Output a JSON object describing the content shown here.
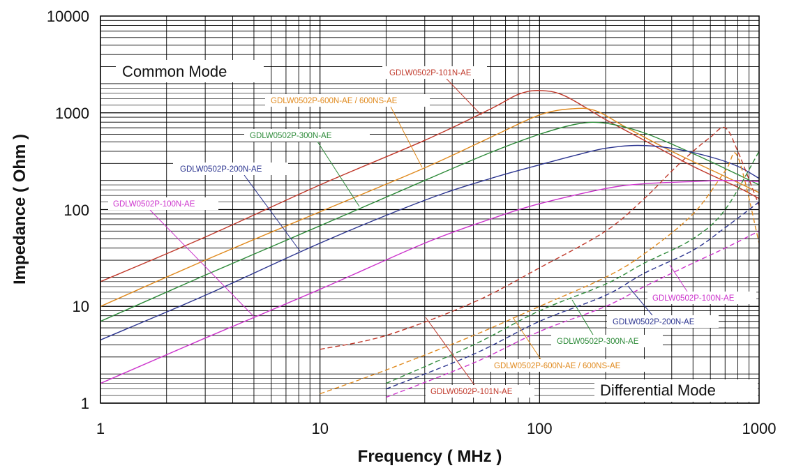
{
  "chart_data": {
    "type": "line",
    "xlabel": "Frequency ( MHz )",
    "ylabel": "Impedance ( Ohm )",
    "x_scale": "log",
    "y_scale": "log",
    "xlim": [
      1,
      1000
    ],
    "ylim": [
      1,
      10000
    ],
    "x_ticks": [
      "1",
      "10",
      "100",
      "1000"
    ],
    "y_ticks": [
      "1",
      "10",
      "100",
      "1000",
      "10000"
    ],
    "grid": true,
    "annotations": {
      "common_mode": "Common Mode",
      "differential_mode": "Differential Mode"
    },
    "colors": {
      "101N": "#c0392b",
      "600N": "#e08a1e",
      "300N": "#2e8b3a",
      "200N": "#2c3590",
      "100N": "#cc33cc"
    },
    "labels": {
      "cm_101": "GDLW0502P-101N-AE",
      "cm_600": "GDLW0502P-600N-AE / 600NS-AE",
      "cm_300": "GDLW0502P-300N-AE",
      "cm_200": "GDLW0502P-200N-AE",
      "cm_100": "GDLW0502P-100N-AE",
      "dm_100": "GDLW0502P-100N-AE",
      "dm_200": "GDLW0502P-200N-AE",
      "dm_300": "GDLW0502P-300N-AE",
      "dm_600": "GDLW0502P-600N-AE / 600NS-AE",
      "dm_101": "GDLW0502P-101N-AE"
    },
    "series": [
      {
        "key": "101N",
        "mode": "common",
        "dashed": false,
        "x": [
          1,
          3,
          10,
          30,
          60,
          80,
          100,
          130,
          200,
          300,
          500,
          800,
          1000
        ],
        "y": [
          18,
          52,
          180,
          520,
          1100,
          1550,
          1700,
          1500,
          850,
          520,
          280,
          170,
          130
        ]
      },
      {
        "key": "600N",
        "mode": "common",
        "dashed": false,
        "x": [
          1,
          3,
          10,
          30,
          60,
          100,
          140,
          180,
          250,
          400,
          700,
          1000
        ],
        "y": [
          10,
          30,
          95,
          270,
          560,
          950,
          1100,
          1050,
          700,
          400,
          220,
          150
        ]
      },
      {
        "key": "300N",
        "mode": "common",
        "dashed": false,
        "x": [
          1,
          3,
          10,
          30,
          60,
          100,
          150,
          200,
          300,
          500,
          800,
          1000
        ],
        "y": [
          7,
          21,
          68,
          200,
          390,
          600,
          770,
          780,
          620,
          380,
          230,
          180
        ]
      },
      {
        "key": "200N",
        "mode": "common",
        "dashed": false,
        "x": [
          1,
          3,
          10,
          30,
          60,
          100,
          150,
          200,
          280,
          400,
          600,
          800,
          1000
        ],
        "y": [
          4.5,
          13,
          45,
          125,
          210,
          290,
          370,
          430,
          460,
          430,
          350,
          280,
          210
        ]
      },
      {
        "key": "100N",
        "mode": "common",
        "dashed": false,
        "x": [
          1,
          3,
          10,
          30,
          60,
          100,
          200,
          300,
          500,
          700,
          1000
        ],
        "y": [
          1.6,
          4.7,
          15,
          45,
          80,
          115,
          165,
          185,
          195,
          200,
          195
        ]
      },
      {
        "key": "101N",
        "mode": "differential",
        "dashed": true,
        "x": [
          10,
          20,
          50,
          100,
          200,
          300,
          400,
          500,
          600,
          700,
          800,
          1000
        ],
        "y": [
          3.6,
          5,
          11,
          25,
          60,
          130,
          250,
          400,
          560,
          700,
          400,
          110
        ]
      },
      {
        "key": "600N",
        "mode": "differential",
        "dashed": true,
        "x": [
          10,
          20,
          50,
          100,
          200,
          300,
          500,
          700,
          800,
          1000
        ],
        "y": [
          1.25,
          2.2,
          5,
          10,
          20,
          35,
          90,
          250,
          350,
          45
        ]
      },
      {
        "key": "300N",
        "mode": "differential",
        "dashed": true,
        "x": [
          20,
          50,
          100,
          200,
          300,
          500,
          700,
          1000
        ],
        "y": [
          1.6,
          4,
          9,
          17,
          28,
          50,
          100,
          400
        ]
      },
      {
        "key": "200N",
        "mode": "differential",
        "dashed": true,
        "x": [
          20,
          50,
          100,
          200,
          300,
          500,
          700,
          1000
        ],
        "y": [
          1.4,
          3.2,
          7,
          13,
          22,
          38,
          65,
          120
        ]
      },
      {
        "key": "100N",
        "mode": "differential",
        "dashed": true,
        "x": [
          20,
          50,
          100,
          200,
          300,
          500,
          700,
          1000
        ],
        "y": [
          1.15,
          2.6,
          5.5,
          10,
          16,
          28,
          40,
          60
        ]
      }
    ]
  }
}
